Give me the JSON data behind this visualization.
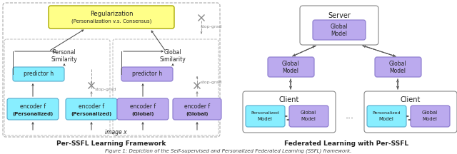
{
  "caption": "Figure 1: Depiction of the Self-supervised and Personalized Federated Learning (SSFL) framework.",
  "left_title": "Per-SSFL Learning Framework",
  "right_title": "Federated Learning with Per-SSFL",
  "fig_background": "#ffffff",
  "yellow_box": "#ffff88",
  "cyan_box": "#88eeff",
  "purple_box": "#bbaaee",
  "light_blue_text": "#aabbdd",
  "white_box": "#ffffff",
  "outer_gray": "#f0f0f0",
  "dashed_border": "#aaaaaa",
  "inner_dashed": "#bbbbbb"
}
